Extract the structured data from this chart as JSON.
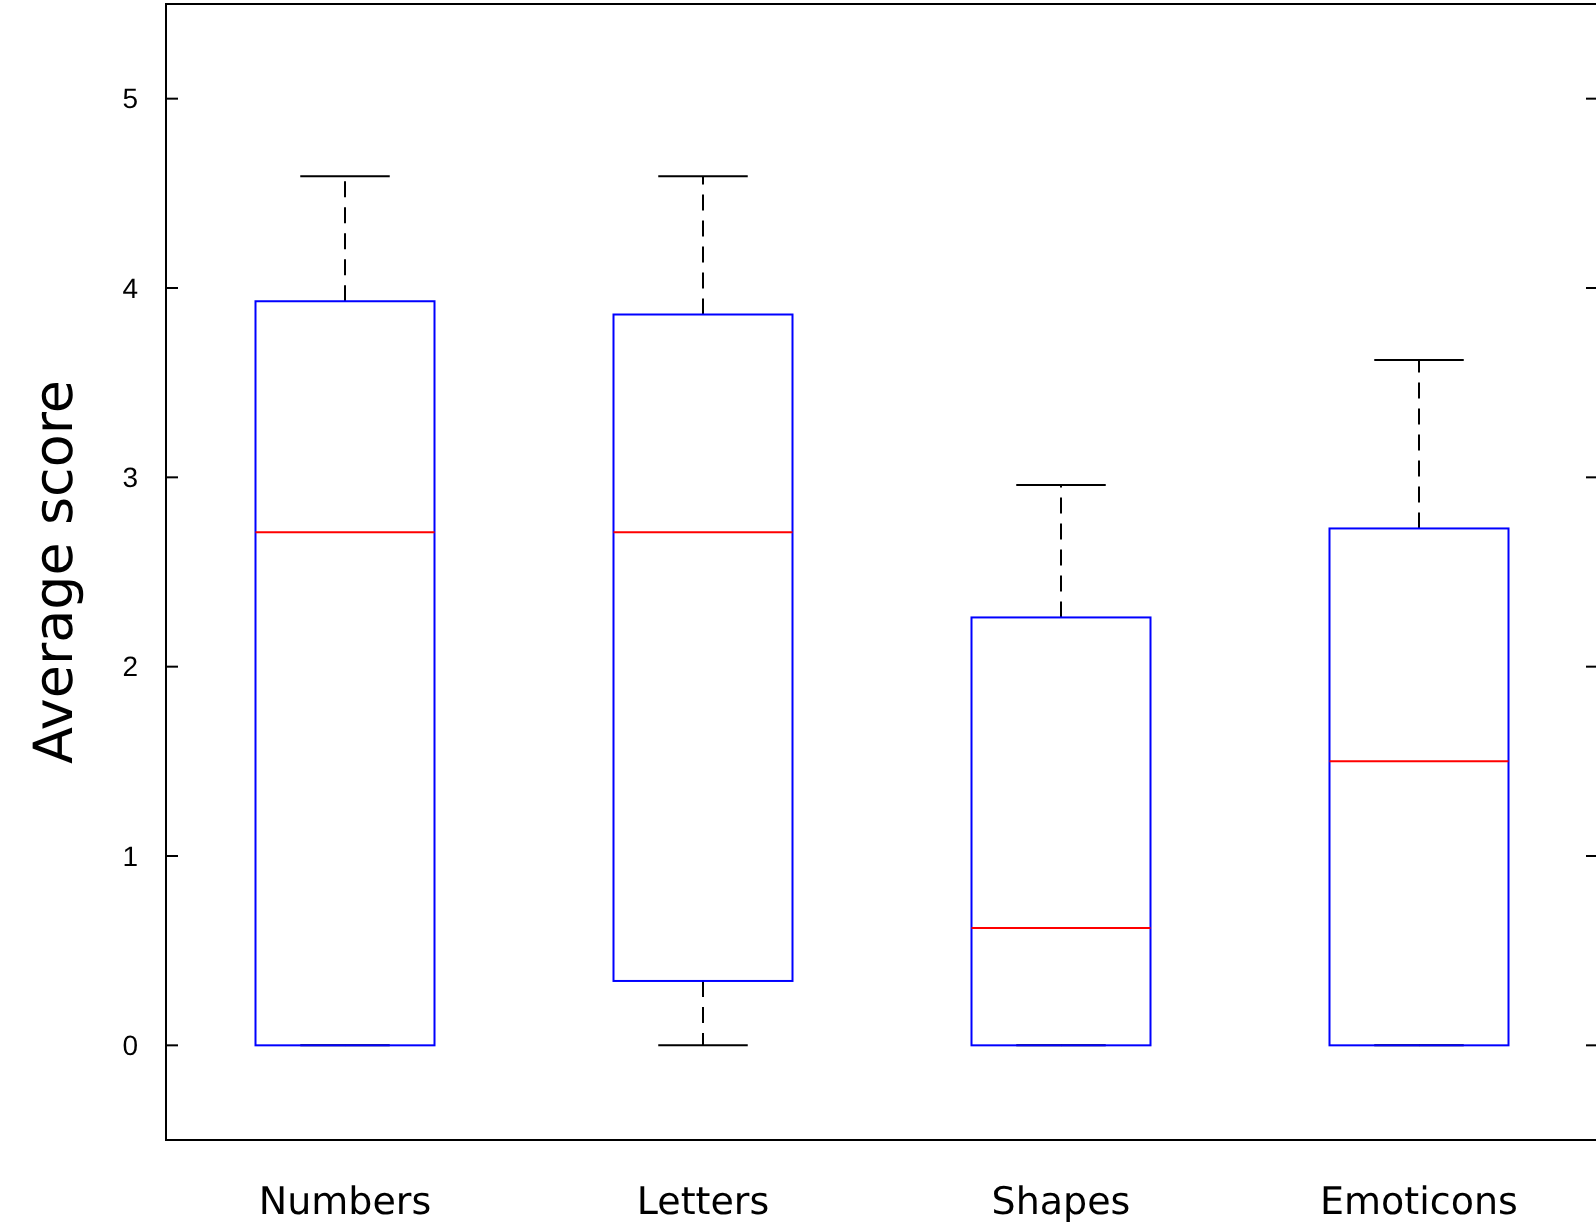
{
  "chart_data": {
    "type": "box",
    "ylabel": "Average score",
    "categories": [
      "Numbers",
      "Letters",
      "Shapes",
      "Emoticons"
    ],
    "series": [
      {
        "color": "#0000ff",
        "boxes": [
          {
            "low": 0,
            "q1": 0,
            "median": 2.71,
            "q3": 3.93,
            "high": 4.59
          },
          {
            "low": 0,
            "q1": 0.34,
            "median": 2.71,
            "q3": 3.86,
            "high": 4.59
          },
          {
            "low": 0,
            "q1": 0,
            "median": 0.62,
            "q3": 2.26,
            "high": 2.96
          },
          {
            "low": 0,
            "q1": 0,
            "median": 1.5,
            "q3": 2.73,
            "high": 3.62
          }
        ]
      }
    ],
    "ylim": [
      -0.5,
      5.5
    ],
    "yticks": [
      0,
      1,
      2,
      3,
      4,
      5
    ],
    "grid": false
  }
}
